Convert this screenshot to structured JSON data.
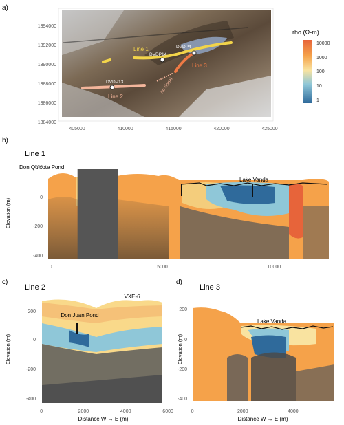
{
  "panel_labels": {
    "a": "a)",
    "b": "b)",
    "c": "c)",
    "d": "d)"
  },
  "map": {
    "x_ticks": [
      "405000",
      "410000",
      "415000",
      "420000",
      "425000"
    ],
    "y_ticks": [
      "1394000",
      "1392000",
      "1390000",
      "1388000",
      "1386000",
      "1384000"
    ],
    "lines": [
      {
        "label": "Line 1",
        "color": "#f2d44a"
      },
      {
        "label": "Line 2",
        "color": "#f3b59b"
      },
      {
        "label": "Line 3",
        "color": "#ef7a45"
      }
    ],
    "boreholes": [
      "DVDP4",
      "DVDP14",
      "DVDP13"
    ],
    "no_signal": "no signal",
    "colors": {
      "lake": "#8795ad"
    }
  },
  "colorbar": {
    "title": "rho (Ω-m)",
    "ticks": [
      "10000",
      "1000",
      "100",
      "10",
      "1"
    ],
    "colors": [
      "#e7643a",
      "#f5a24a",
      "#f9d98a",
      "#8fc7d8",
      "#2f6a9b"
    ]
  },
  "chart_data": [
    {
      "type": "heatmap",
      "title": "Line 1",
      "xlabel": "",
      "ylabel": "Elevation (m)",
      "xlim": [
        -300,
        12700
      ],
      "ylim": [
        -420,
        220
      ],
      "x_ticks": [
        "0",
        "5000",
        "10000"
      ],
      "y_ticks": [
        "200",
        "0",
        "-200",
        "-400"
      ],
      "annotations": [
        "Don Quixote Pond",
        "Lake Vanda"
      ],
      "no_data_block": [
        1200,
        3000
      ]
    },
    {
      "type": "heatmap",
      "title": "Line 2",
      "xlabel": "Distance W → E (m)",
      "ylabel": "Elevation (m)",
      "xlim": [
        -100,
        5900
      ],
      "ylim": [
        -420,
        270
      ],
      "x_ticks": [
        "0",
        "2000",
        "4000",
        "6000"
      ],
      "y_ticks": [
        "200",
        "0",
        "-200",
        "-400"
      ],
      "annotations": [
        "Don Juan Pond",
        "VXE-6"
      ]
    },
    {
      "type": "heatmap",
      "title": "Line 3",
      "xlabel": "Distance W → E (m)",
      "ylabel": "Elevation (m)",
      "xlim": [
        -100,
        5700
      ],
      "ylim": [
        -420,
        240
      ],
      "x_ticks": [
        "0",
        "2000",
        "4000"
      ],
      "y_ticks": [
        "200",
        "0",
        "-200",
        "-400"
      ],
      "annotations": [
        "Lake Vanda"
      ]
    }
  ]
}
